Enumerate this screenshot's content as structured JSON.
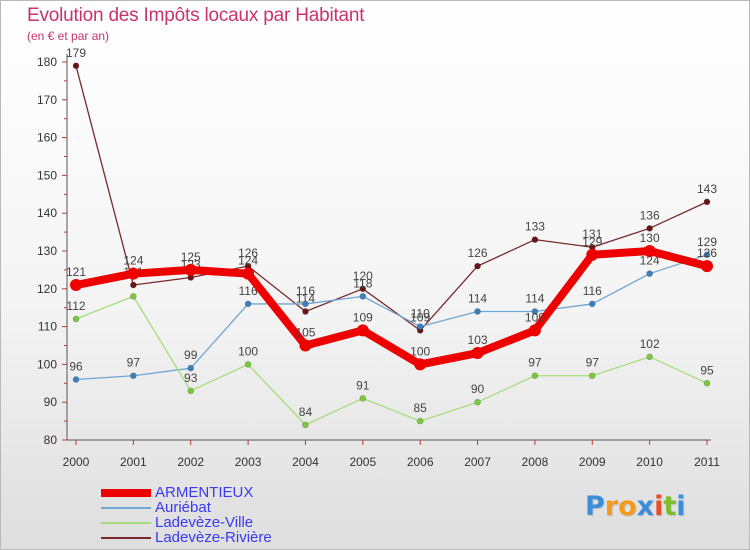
{
  "header": {
    "title": "Evolution des Impôts locaux par Habitant",
    "subtitle": "(en € et par an)"
  },
  "logo": {
    "letters": [
      "P",
      "r",
      "o",
      "x",
      "i",
      "t",
      "i"
    ],
    "colors": [
      "#3a8fd8",
      "#f29a1c",
      "#f29a1c",
      "#3a8fd8",
      "#e84a2a",
      "#7cbd2c",
      "#3a8fd8"
    ]
  },
  "chart_data": {
    "type": "line",
    "title": "Evolution des Impôts locaux par Habitant",
    "subtitle": "(en € et par an)",
    "xlabel": "",
    "ylabel": "",
    "x": [
      "2000",
      "2001",
      "2002",
      "2003",
      "2004",
      "2005",
      "2006",
      "2007",
      "2008",
      "2009",
      "2010",
      "2011"
    ],
    "yticks": [
      "80",
      "90",
      "100",
      "110",
      "120",
      "130",
      "140",
      "150",
      "160",
      "170",
      "180"
    ],
    "ylim": [
      80,
      180
    ],
    "grid": false,
    "legend": "bottom-left",
    "series": [
      {
        "name": "Ladevèze-Rivière",
        "color": "#7a2a2a",
        "dot": "#6b1616",
        "width": 1.3,
        "values": [
          179,
          121,
          123,
          126,
          114,
          120,
          109,
          126,
          133,
          131,
          136,
          143
        ],
        "labels": [
          "179",
          "121",
          "123",
          "126",
          "114",
          "120",
          "109",
          "126",
          "133",
          "131",
          "136",
          "143"
        ]
      },
      {
        "name": "Auriébat",
        "color": "#6ea6d4",
        "dot": "#3c7fbf",
        "width": 1.3,
        "values": [
          96,
          97,
          99,
          116,
          116,
          118,
          110,
          114,
          114,
          116,
          124,
          129
        ],
        "labels": [
          "96",
          "97",
          "99",
          "116",
          "116",
          "118",
          "110",
          "114",
          "114",
          "116",
          "124",
          "129"
        ]
      },
      {
        "name": "Ladevèze-Ville",
        "color": "#a6dd7a",
        "dot": "#7cc83e",
        "width": 1.3,
        "values": [
          112,
          118,
          93,
          100,
          84,
          91,
          85,
          90,
          97,
          97,
          102,
          95
        ],
        "labels": [
          "112",
          "",
          "93",
          "100",
          "84",
          "91",
          "85",
          "90",
          "97",
          "97",
          "102",
          "95"
        ]
      },
      {
        "name": "ARMENTIEUX",
        "color": "#ee0000",
        "dot": "#ee0000",
        "width": 8,
        "values": [
          121,
          124,
          125,
          124,
          105,
          109,
          100,
          103,
          109,
          129,
          130,
          126
        ],
        "labels": [
          "121",
          "124",
          "125",
          "124",
          "105",
          "109",
          "100",
          "103",
          "109",
          "129",
          "130",
          "126"
        ]
      }
    ]
  },
  "legend": {
    "items": [
      {
        "name": "ARMENTIEUX",
        "color": "#ee0000",
        "thickness": 8
      },
      {
        "name": "Auriébat",
        "color": "#6ea6d4",
        "thickness": 2
      },
      {
        "name": "Ladevèze-Ville",
        "color": "#a6dd7a",
        "thickness": 2
      },
      {
        "name": "Ladevèze-Rivière",
        "color": "#7a2a2a",
        "thickness": 2
      }
    ],
    "text_color": "#3a3aee"
  }
}
